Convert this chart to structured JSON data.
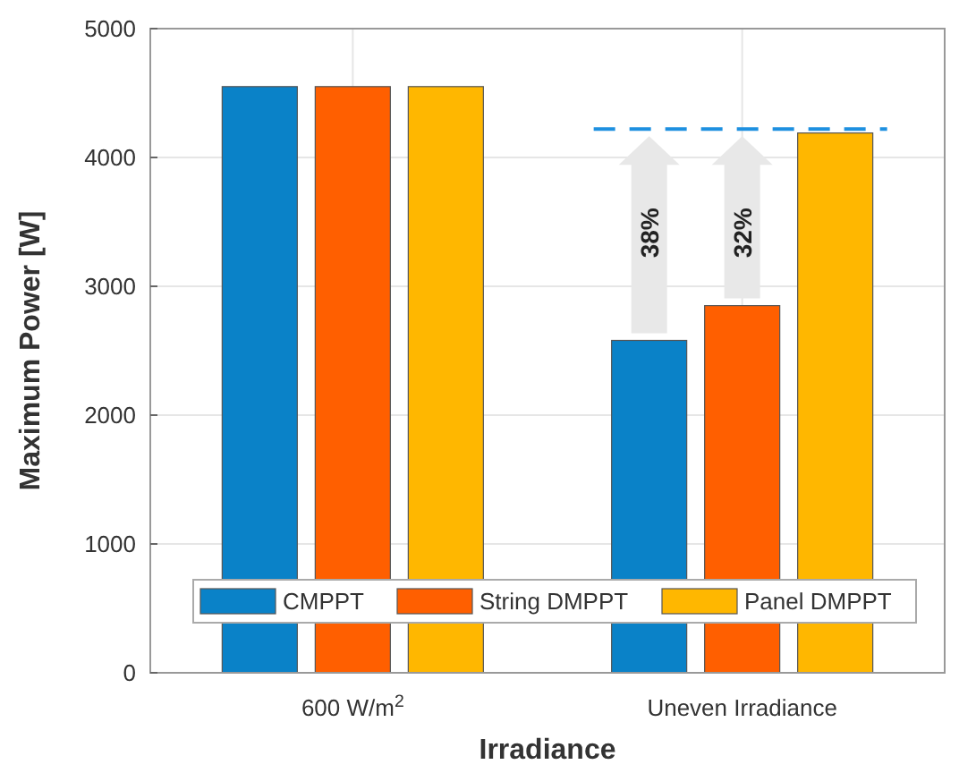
{
  "chart_data": {
    "type": "bar",
    "xlabel": "Irradiance",
    "ylabel": "Maximum Power [W]",
    "categories": [
      "600 W/m$^{2}$",
      "Uneven Irradiance"
    ],
    "series": [
      {
        "name": "CMPPT",
        "color": "#0a82c8",
        "values": [
          4550,
          2580
        ]
      },
      {
        "name": "String DMPPT",
        "color": "#ff5f00",
        "values": [
          4550,
          2850
        ]
      },
      {
        "name": "Panel DMPPT",
        "color": "#ffb700",
        "values": [
          4550,
          4190
        ]
      }
    ],
    "ylim": [
      0,
      5000
    ],
    "yticks": [
      0,
      1000,
      2000,
      3000,
      4000,
      5000
    ],
    "grid": true,
    "legend": "bottom",
    "ref_lines": [
      {
        "axis": "y",
        "value": 4220,
        "color": "#1e90e0",
        "line_style": "dashed"
      }
    ],
    "annotations": [
      "38%",
      "32%"
    ]
  }
}
